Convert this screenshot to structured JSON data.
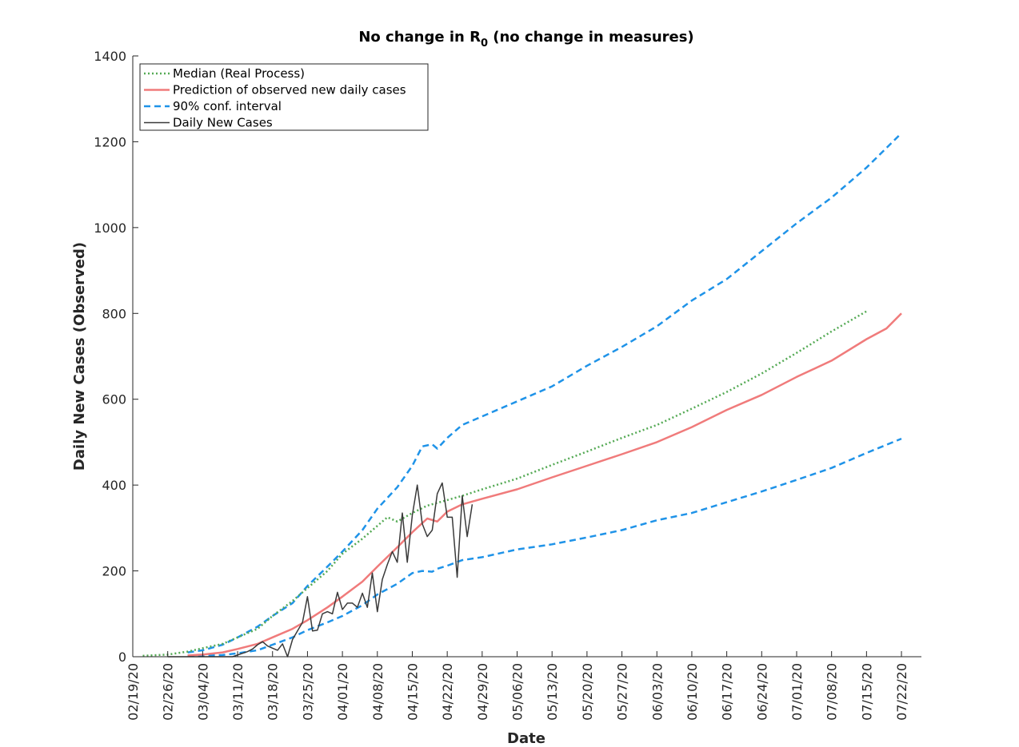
{
  "chart_data": {
    "type": "line",
    "title": "No change in R",
    "title_subscript": "0",
    "title_suffix": " (no change in measures)",
    "xlabel": "Date",
    "ylabel": "Daily New Cases (Observed)",
    "ylim": [
      0,
      1400
    ],
    "yticks": [
      0,
      200,
      400,
      600,
      800,
      1000,
      1200,
      1400
    ],
    "xlim": [
      "2020-02-19",
      "2020-07-26"
    ],
    "xtick_dates": [
      "2020-02-19",
      "2020-02-26",
      "2020-03-04",
      "2020-03-11",
      "2020-03-18",
      "2020-03-25",
      "2020-04-01",
      "2020-04-08",
      "2020-04-15",
      "2020-04-22",
      "2020-04-29",
      "2020-05-06",
      "2020-05-13",
      "2020-05-20",
      "2020-05-27",
      "2020-06-03",
      "2020-06-10",
      "2020-06-17",
      "2020-06-24",
      "2020-07-01",
      "2020-07-08",
      "2020-07-15",
      "2020-07-22"
    ],
    "xtick_labels": [
      "02/19/20",
      "02/26/20",
      "03/04/20",
      "03/11/20",
      "03/18/20",
      "03/25/20",
      "04/01/20",
      "04/08/20",
      "04/15/20",
      "04/22/20",
      "04/29/20",
      "05/06/20",
      "05/13/20",
      "05/20/20",
      "05/27/20",
      "06/03/20",
      "06/10/20",
      "06/17/20",
      "06/24/20",
      "07/01/20",
      "07/08/20",
      "07/15/20",
      "07/22/20"
    ],
    "grid": false,
    "legend_position": "top-left",
    "series": [
      {
        "name": "Median (Real Process)",
        "color": "#55aa55",
        "style": "dotted",
        "points": [
          [
            "2020-02-21",
            2
          ],
          [
            "2020-02-26",
            5
          ],
          [
            "2020-03-01",
            12
          ],
          [
            "2020-03-04",
            20
          ],
          [
            "2020-03-08",
            30
          ],
          [
            "2020-03-11",
            45
          ],
          [
            "2020-03-15",
            65
          ],
          [
            "2020-03-18",
            95
          ],
          [
            "2020-03-22",
            130
          ],
          [
            "2020-03-25",
            160
          ],
          [
            "2020-03-29",
            200
          ],
          [
            "2020-04-01",
            240
          ],
          [
            "2020-04-05",
            275
          ],
          [
            "2020-04-08",
            305
          ],
          [
            "2020-04-10",
            325
          ],
          [
            "2020-04-12",
            315
          ],
          [
            "2020-04-15",
            335
          ],
          [
            "2020-04-18",
            352
          ],
          [
            "2020-04-22",
            365
          ],
          [
            "2020-04-25",
            375
          ],
          [
            "2020-04-29",
            390
          ],
          [
            "2020-05-06",
            415
          ],
          [
            "2020-05-13",
            447
          ],
          [
            "2020-05-20",
            478
          ],
          [
            "2020-05-27",
            510
          ],
          [
            "2020-06-03",
            540
          ],
          [
            "2020-06-10",
            578
          ],
          [
            "2020-06-17",
            617
          ],
          [
            "2020-06-24",
            660
          ],
          [
            "2020-07-01",
            708
          ],
          [
            "2020-07-08",
            758
          ],
          [
            "2020-07-15",
            805
          ]
        ]
      },
      {
        "name": "Prediction of observed new daily cases",
        "color": "#f07b7b",
        "style": "solid",
        "points": [
          [
            "2020-03-01",
            3
          ],
          [
            "2020-03-04",
            5
          ],
          [
            "2020-03-08",
            10
          ],
          [
            "2020-03-11",
            18
          ],
          [
            "2020-03-15",
            30
          ],
          [
            "2020-03-18",
            45
          ],
          [
            "2020-03-22",
            65
          ],
          [
            "2020-03-25",
            85
          ],
          [
            "2020-03-29",
            115
          ],
          [
            "2020-04-01",
            140
          ],
          [
            "2020-04-05",
            175
          ],
          [
            "2020-04-08",
            210
          ],
          [
            "2020-04-12",
            255
          ],
          [
            "2020-04-15",
            290
          ],
          [
            "2020-04-18",
            322
          ],
          [
            "2020-04-20",
            315
          ],
          [
            "2020-04-22",
            338
          ],
          [
            "2020-04-25",
            355
          ],
          [
            "2020-04-29",
            368
          ],
          [
            "2020-05-06",
            390
          ],
          [
            "2020-05-13",
            418
          ],
          [
            "2020-05-20",
            445
          ],
          [
            "2020-05-27",
            472
          ],
          [
            "2020-06-03",
            500
          ],
          [
            "2020-06-10",
            535
          ],
          [
            "2020-06-17",
            575
          ],
          [
            "2020-06-24",
            610
          ],
          [
            "2020-07-01",
            652
          ],
          [
            "2020-07-08",
            690
          ],
          [
            "2020-07-15",
            740
          ],
          [
            "2020-07-19",
            765
          ],
          [
            "2020-07-22",
            800
          ]
        ]
      },
      {
        "name": "90% conf. interval",
        "color": "#1f93e8",
        "style": "dashed",
        "points": [
          [
            "2020-03-01",
            10
          ],
          [
            "2020-03-04",
            15
          ],
          [
            "2020-03-08",
            28
          ],
          [
            "2020-03-11",
            45
          ],
          [
            "2020-03-15",
            70
          ],
          [
            "2020-03-18",
            95
          ],
          [
            "2020-03-22",
            125
          ],
          [
            "2020-03-25",
            165
          ],
          [
            "2020-03-29",
            210
          ],
          [
            "2020-04-01",
            245
          ],
          [
            "2020-04-05",
            295
          ],
          [
            "2020-04-08",
            345
          ],
          [
            "2020-04-12",
            395
          ],
          [
            "2020-04-15",
            445
          ],
          [
            "2020-04-17",
            490
          ],
          [
            "2020-04-19",
            495
          ],
          [
            "2020-04-20",
            485
          ],
          [
            "2020-04-22",
            510
          ],
          [
            "2020-04-25",
            540
          ],
          [
            "2020-04-29",
            560
          ],
          [
            "2020-05-06",
            595
          ],
          [
            "2020-05-13",
            630
          ],
          [
            "2020-05-20",
            678
          ],
          [
            "2020-05-27",
            722
          ],
          [
            "2020-06-03",
            770
          ],
          [
            "2020-06-10",
            830
          ],
          [
            "2020-06-17",
            880
          ],
          [
            "2020-06-24",
            945
          ],
          [
            "2020-07-01",
            1010
          ],
          [
            "2020-07-08",
            1070
          ],
          [
            "2020-07-15",
            1140
          ],
          [
            "2020-07-22",
            1220
          ]
        ]
      },
      {
        "name": "",
        "color": "#1f93e8",
        "style": "dashed",
        "points": [
          [
            "2020-03-01",
            2
          ],
          [
            "2020-03-04",
            2
          ],
          [
            "2020-03-08",
            4
          ],
          [
            "2020-03-11",
            8
          ],
          [
            "2020-03-15",
            15
          ],
          [
            "2020-03-18",
            28
          ],
          [
            "2020-03-22",
            45
          ],
          [
            "2020-03-25",
            62
          ],
          [
            "2020-03-29",
            80
          ],
          [
            "2020-04-01",
            95
          ],
          [
            "2020-04-05",
            120
          ],
          [
            "2020-04-08",
            145
          ],
          [
            "2020-04-12",
            170
          ],
          [
            "2020-04-15",
            195
          ],
          [
            "2020-04-17",
            200
          ],
          [
            "2020-04-19",
            198
          ],
          [
            "2020-04-20",
            205
          ],
          [
            "2020-04-22",
            212
          ],
          [
            "2020-04-25",
            225
          ],
          [
            "2020-04-29",
            232
          ],
          [
            "2020-05-06",
            250
          ],
          [
            "2020-05-13",
            262
          ],
          [
            "2020-05-20",
            278
          ],
          [
            "2020-05-27",
            295
          ],
          [
            "2020-06-03",
            318
          ],
          [
            "2020-06-10",
            335
          ],
          [
            "2020-06-17",
            360
          ],
          [
            "2020-06-24",
            385
          ],
          [
            "2020-07-01",
            412
          ],
          [
            "2020-07-08",
            440
          ],
          [
            "2020-07-15",
            475
          ],
          [
            "2020-07-22",
            508
          ]
        ]
      },
      {
        "name": "Daily New Cases",
        "color": "#3a3a3a",
        "style": "solid",
        "points": [
          [
            "2020-02-26",
            0
          ],
          [
            "2020-03-04",
            0
          ],
          [
            "2020-03-10",
            0
          ],
          [
            "2020-03-12",
            8
          ],
          [
            "2020-03-13",
            12
          ],
          [
            "2020-03-14",
            18
          ],
          [
            "2020-03-15",
            28
          ],
          [
            "2020-03-16",
            35
          ],
          [
            "2020-03-17",
            25
          ],
          [
            "2020-03-18",
            20
          ],
          [
            "2020-03-19",
            15
          ],
          [
            "2020-03-20",
            30
          ],
          [
            "2020-03-21",
            0
          ],
          [
            "2020-03-22",
            40
          ],
          [
            "2020-03-23",
            60
          ],
          [
            "2020-03-24",
            80
          ],
          [
            "2020-03-25",
            140
          ],
          [
            "2020-03-26",
            60
          ],
          [
            "2020-03-27",
            62
          ],
          [
            "2020-03-28",
            100
          ],
          [
            "2020-03-29",
            105
          ],
          [
            "2020-03-30",
            100
          ],
          [
            "2020-03-31",
            150
          ],
          [
            "2020-04-01",
            110
          ],
          [
            "2020-04-02",
            125
          ],
          [
            "2020-04-03",
            125
          ],
          [
            "2020-04-04",
            115
          ],
          [
            "2020-04-05",
            148
          ],
          [
            "2020-04-06",
            115
          ],
          [
            "2020-04-07",
            195
          ],
          [
            "2020-04-08",
            105
          ],
          [
            "2020-04-09",
            180
          ],
          [
            "2020-04-10",
            215
          ],
          [
            "2020-04-11",
            245
          ],
          [
            "2020-04-12",
            220
          ],
          [
            "2020-04-13",
            335
          ],
          [
            "2020-04-14",
            220
          ],
          [
            "2020-04-15",
            330
          ],
          [
            "2020-04-16",
            400
          ],
          [
            "2020-04-17",
            310
          ],
          [
            "2020-04-18",
            280
          ],
          [
            "2020-04-19",
            295
          ],
          [
            "2020-04-20",
            380
          ],
          [
            "2020-04-21",
            405
          ],
          [
            "2020-04-22",
            325
          ],
          [
            "2020-04-23",
            325
          ],
          [
            "2020-04-24",
            185
          ],
          [
            "2020-04-25",
            375
          ],
          [
            "2020-04-26",
            280
          ],
          [
            "2020-04-27",
            355
          ]
        ]
      }
    ]
  },
  "legend": {
    "items": [
      {
        "label": "Median (Real Process)",
        "color": "#55aa55",
        "style": "dotted"
      },
      {
        "label": "Prediction of observed new daily cases",
        "color": "#f07b7b",
        "style": "solid"
      },
      {
        "label": "90% conf. interval",
        "color": "#1f93e8",
        "style": "dashed"
      },
      {
        "label": "Daily New Cases",
        "color": "#3a3a3a",
        "style": "solid"
      }
    ]
  }
}
